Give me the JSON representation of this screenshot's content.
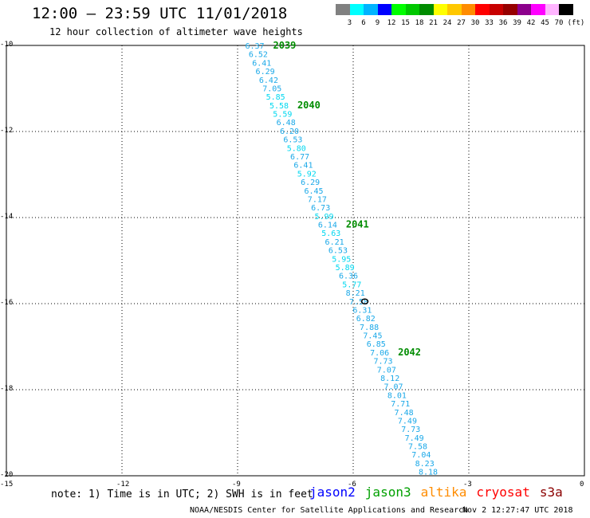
{
  "header": {
    "title": "12:00 – 23:59 UTC 11/01/2018",
    "subtitle": "12 hour collection of altimeter wave heights"
  },
  "legend": {
    "unit": "(ft)",
    "items": [
      {
        "label": "3",
        "color": "#808080"
      },
      {
        "label": "6",
        "color": "#00ffff"
      },
      {
        "label": "9",
        "color": "#00b4ff"
      },
      {
        "label": "12",
        "color": "#0000ff"
      },
      {
        "label": "15",
        "color": "#00ff00"
      },
      {
        "label": "18",
        "color": "#00c800"
      },
      {
        "label": "21",
        "color": "#008c00"
      },
      {
        "label": "24",
        "color": "#ffff00"
      },
      {
        "label": "27",
        "color": "#ffc800"
      },
      {
        "label": "30",
        "color": "#ff8c00"
      },
      {
        "label": "33",
        "color": "#ff0000"
      },
      {
        "label": "36",
        "color": "#c80000"
      },
      {
        "label": "39",
        "color": "#960000"
      },
      {
        "label": "42",
        "color": "#8c008c"
      },
      {
        "label": "45",
        "color": "#ff00ff"
      },
      {
        "label": "70",
        "color": "#ffb4ff"
      },
      {
        "label": "",
        "color": "#000000"
      }
    ]
  },
  "map": {
    "lat_range": [
      -20,
      -10
    ],
    "lon_range": [
      -15,
      0
    ],
    "lat_ticks": [
      "-10",
      "-12",
      "-14",
      "-16",
      "-18",
      "-20"
    ],
    "lon_ticks": [
      "-15",
      "-12",
      "-9",
      "-6",
      "-3",
      "0"
    ]
  },
  "track": {
    "start": {
      "lon": -8.7,
      "lat": -10.0
    },
    "end": {
      "lon": -4.2,
      "lat": -19.9
    },
    "values": [
      "6.37",
      "6.52",
      "6.41",
      "6.29",
      "6.42",
      "7.05",
      "5.85",
      "5.58",
      "5.59",
      "6.48",
      "6.20",
      "6.53",
      "5.80",
      "6.77",
      "6.41",
      "5.92",
      "6.29",
      "6.45",
      "7.17",
      "6.73",
      "5.99",
      "6.14",
      "5.63",
      "6.21",
      "6.53",
      "5.95",
      "5.89",
      "6.36",
      "5.77",
      "8.21",
      "7.58",
      "6.31",
      "6.82",
      "7.88",
      "7.45",
      "6.85",
      "7.06",
      "7.73",
      "7.07",
      "8.12",
      "7.07",
      "8.01",
      "7.71",
      "7.48",
      "7.49",
      "7.73",
      "7.49",
      "7.58",
      "7.04",
      "8.23",
      "8.18"
    ],
    "times": [
      {
        "label": "2039",
        "index": 0
      },
      {
        "label": "2040",
        "index": 7
      },
      {
        "label": "2041",
        "index": 21
      },
      {
        "label": "2042",
        "index": 36
      }
    ]
  },
  "footer": {
    "note": "note: 1) Time is in UTC; 2) SWH is in feet",
    "satellites": [
      {
        "name": "jason2",
        "color": "#0000ff"
      },
      {
        "name": "jason3",
        "color": "#00a000"
      },
      {
        "name": "altika",
        "color": "#ff8c00"
      },
      {
        "name": "cryosat",
        "color": "#ff0000"
      },
      {
        "name": "s3a",
        "color": "#8b0000"
      }
    ],
    "credit": "NOAA/NESDIS Center for Satellite Applications and Research",
    "timestamp": "Nov  2 12:27:47 UTC 2018"
  }
}
